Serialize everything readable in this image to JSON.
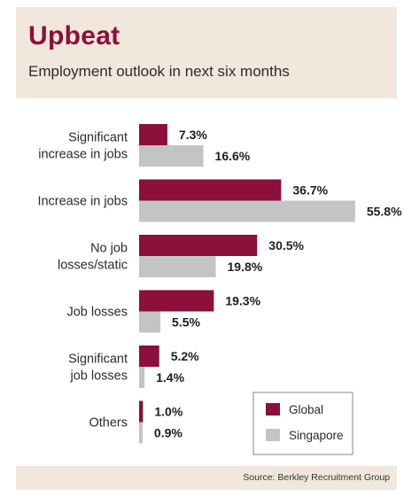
{
  "header": {
    "title": "Upbeat",
    "subtitle": "Employment outlook in next six months"
  },
  "footer": {
    "source": "Source:  Berkley Recruitment Group"
  },
  "colors": {
    "global": "#8c0f3c",
    "singapore": "#c4c4c6",
    "header_bg": "#f1e7dd"
  },
  "chart_data": {
    "type": "bar",
    "orientation": "horizontal",
    "categories": [
      [
        "Significant",
        "increase in jobs"
      ],
      [
        "Increase in jobs"
      ],
      [
        "No job",
        "losses/static"
      ],
      [
        "Job losses"
      ],
      [
        "Significant",
        "job losses"
      ],
      [
        "Others"
      ]
    ],
    "series": [
      {
        "name": "Global",
        "values": [
          7.3,
          36.7,
          30.5,
          19.3,
          5.2,
          1.0
        ],
        "labels": [
          "7.3%",
          "36.7%",
          "30.5%",
          "19.3%",
          "5.2%",
          "1.0%"
        ]
      },
      {
        "name": "Singapore",
        "values": [
          16.6,
          55.8,
          19.8,
          5.5,
          1.4,
          0.9
        ],
        "labels": [
          "16.6%",
          "55.8%",
          "19.8%",
          "5.5%",
          "1.4%",
          "0.9%"
        ]
      }
    ],
    "xlim": [
      0,
      56
    ],
    "grid": false,
    "legend_position": "bottom-right"
  }
}
